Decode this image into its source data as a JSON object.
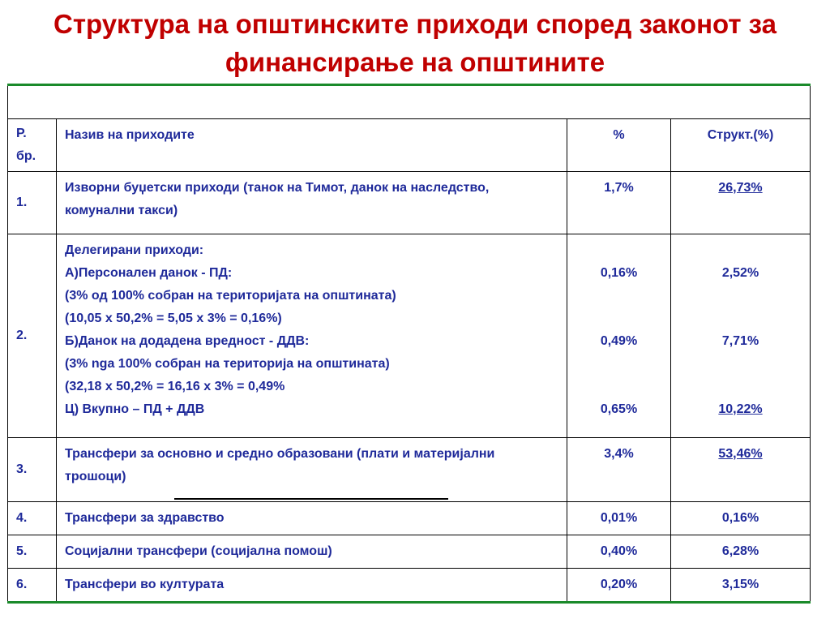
{
  "title": {
    "line1": "Структура на општинските приходи според законот за",
    "line2": "финансирање на општините"
  },
  "table": {
    "header": {
      "no": "Р. бр.",
      "name": "Назив на приходите",
      "percent": "%",
      "structure": "Структ.(%)"
    },
    "rows": [
      {
        "no": "1.",
        "name": "Изворни буџетски приходи (танок на Тимот, данок на наследство, комунални такси)",
        "percent": "1,7%",
        "structure": "26,73%"
      },
      {
        "no": "2.",
        "lines": [
          "Делегирани приходи:",
          "А)Персонален данок - ПД:",
          "(3% од 100% собран на територијата на општината)",
          "(10,05 х  50,2% = 5,05 х 3%  = 0,16%)",
          "Б)Данок на додадена вредност - ДДВ:",
          "(3% nga 100% собран на територија на општината)",
          "(32,18 х 50,2% = 16,16 х 3% =  0,49%",
          "Ц) Вкупно – ПД + ДДВ"
        ],
        "percent_pd": "0,16%",
        "percent_ddv": "0,49%",
        "percent_total": "0,65%",
        "structure_pd": "2,52%",
        "structure_ddv": "7,71%",
        "structure_total": "10,22%"
      },
      {
        "no": "3.",
        "name": "Трансфери за основно и средно образовани (плати и материјални трошоци)",
        "percent": "3,4%",
        "structure": "53,46%"
      },
      {
        "no": "4.",
        "name": "Трансфери за здравство",
        "percent": "0,01%",
        "structure": "0,16%"
      },
      {
        "no": "5.",
        "name": "Социјални трансфери (социјална помош)",
        "percent": "0,40%",
        "structure": "6,28%"
      },
      {
        "no": "6.",
        "name": "Трансфери во културата",
        "percent": "0,20%",
        "structure": "3,15%"
      }
    ]
  }
}
